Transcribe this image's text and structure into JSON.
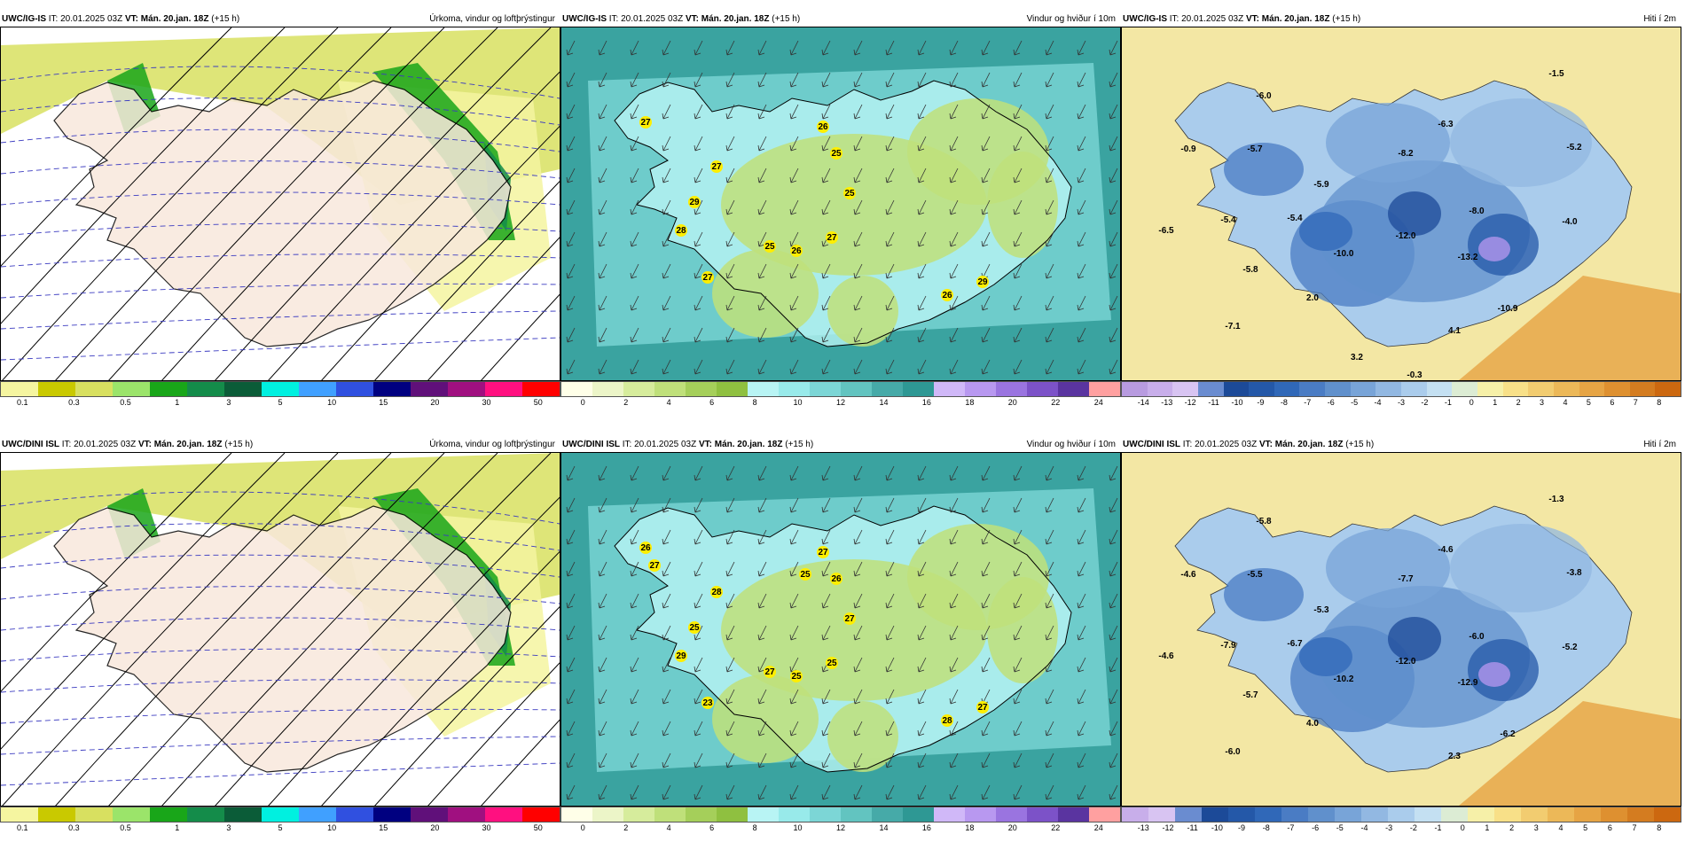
{
  "panels": [
    {
      "model": "UWC/IG-IS",
      "it": "IT: 20.01.2025 03Z",
      "vt_label": "VT:",
      "vt": "Mán. 20.jan. 18Z",
      "lead": "(+15 h)",
      "title": "Úrkoma, vindur og loftþrýstingur",
      "type": "precip",
      "cbar_colors": [
        "#f5f5a0",
        "#c9c900",
        "#d8e060",
        "#9be46a",
        "#19a619",
        "#148c4a",
        "#0b5c38",
        "#00f0e0",
        "#40a0ff",
        "#3050e0",
        "#000080",
        "#60107a",
        "#a01080",
        "#ff1080",
        "#ff0000"
      ],
      "ticks": [
        "0.1",
        "0.3",
        "0.5",
        "1",
        "3",
        "5",
        "10",
        "15",
        "20",
        "30",
        "50"
      ],
      "labels": []
    },
    {
      "model": "UWC/IG-IS",
      "it": "IT: 20.01.2025 03Z",
      "vt_label": "VT:",
      "vt": "Mán. 20.jan. 18Z",
      "lead": "(+15 h)",
      "title": "Vindur og hviður í 10m",
      "type": "wind",
      "cbar_colors": [
        "#ffffe8",
        "#ecf5c8",
        "#d6ec9c",
        "#bfe07a",
        "#a5cf5a",
        "#8fc040",
        "#b8f4f4",
        "#98eaea",
        "#7cd6d6",
        "#62c4c0",
        "#46aaa8",
        "#2e9894",
        "#d0b8f8",
        "#b898f0",
        "#9a74e0",
        "#7c52c8",
        "#5a34a0",
        "#ffa0a0"
      ],
      "ticks": [
        "0",
        "2",
        "4",
        "6",
        "8",
        "10",
        "12",
        "14",
        "16",
        "18",
        "20",
        "22",
        "24"
      ],
      "labels": [
        "27",
        "26",
        "25",
        "27",
        "25",
        "29",
        "28",
        "25",
        "26",
        "27",
        "27",
        "26",
        "29"
      ]
    },
    {
      "model": "UWC/IG-IS",
      "it": "IT: 20.01.2025 03Z",
      "vt_label": "VT:",
      "vt": "Mán. 20.jan. 18Z",
      "lead": "(+15 h)",
      "title": "Hiti í 2m",
      "type": "temp",
      "cbar_colors": [
        "#b89be0",
        "#c8aeea",
        "#d8c4f2",
        "#6a8cd0",
        "#1c4a98",
        "#2458a8",
        "#3068b8",
        "#4a7cc4",
        "#6090cc",
        "#78a4d8",
        "#92b8e2",
        "#aaccec",
        "#c4e0f2",
        "#dcecd4",
        "#f6f0a8",
        "#f8e088",
        "#f2cc70",
        "#ecb858",
        "#e6a444",
        "#de9030",
        "#d47c20",
        "#cc6810"
      ],
      "ticks": [
        "-14",
        "-13",
        "-12",
        "-11",
        "-10",
        "-9",
        "-8",
        "-7",
        "-6",
        "-5",
        "-4",
        "-3",
        "-2",
        "-1",
        "0",
        "1",
        "2",
        "3",
        "4",
        "5",
        "6",
        "7",
        "8"
      ],
      "labels": [
        "-1.5",
        "-6.0",
        "-6.3",
        "-0.9",
        "-5.7",
        "-8.2",
        "-5.2",
        "-5.9",
        "-8.0",
        "-5.4",
        "-4.0",
        "-6.5",
        "-5.4",
        "-10.0",
        "-12.0",
        "-13.2",
        "-5.8",
        "2.0",
        "-10.9",
        "-7.1",
        "4.1",
        "3.2",
        "-0.3"
      ]
    },
    {
      "model": "UWC/DINI ISL",
      "it": "IT: 20.01.2025 03Z",
      "vt_label": "VT:",
      "vt": "Mán. 20.jan. 18Z",
      "lead": "(+15 h)",
      "title": "Úrkoma, vindur og loftþrýstingur",
      "type": "precip",
      "cbar_colors": [
        "#f5f5a0",
        "#c9c900",
        "#d8e060",
        "#9be46a",
        "#19a619",
        "#148c4a",
        "#0b5c38",
        "#00f0e0",
        "#40a0ff",
        "#3050e0",
        "#000080",
        "#60107a",
        "#a01080",
        "#ff1080",
        "#ff0000"
      ],
      "ticks": [
        "0.1",
        "0.3",
        "0.5",
        "1",
        "3",
        "5",
        "10",
        "15",
        "20",
        "30",
        "50"
      ],
      "labels": []
    },
    {
      "model": "UWC/DINI ISL",
      "it": "IT: 20.01.2025 03Z",
      "vt_label": "VT:",
      "vt": "Mán. 20.jan. 18Z",
      "lead": "(+15 h)",
      "title": "Vindur og hviður í 10m",
      "type": "wind",
      "cbar_colors": [
        "#ffffe8",
        "#ecf5c8",
        "#d6ec9c",
        "#bfe07a",
        "#a5cf5a",
        "#8fc040",
        "#b8f4f4",
        "#98eaea",
        "#7cd6d6",
        "#62c4c0",
        "#46aaa8",
        "#2e9894",
        "#d0b8f8",
        "#b898f0",
        "#9a74e0",
        "#7c52c8",
        "#5a34a0",
        "#ffa0a0"
      ],
      "ticks": [
        "0",
        "2",
        "4",
        "6",
        "8",
        "10",
        "12",
        "14",
        "16",
        "18",
        "20",
        "22",
        "24"
      ],
      "labels": [
        "26",
        "27",
        "26",
        "28",
        "27",
        "25",
        "29",
        "27",
        "25",
        "25",
        "23",
        "28",
        "27",
        "27",
        "25"
      ]
    },
    {
      "model": "UWC/DINI ISL",
      "it": "IT: 20.01.2025 03Z",
      "vt_label": "VT:",
      "vt": "Mán. 20.jan. 18Z",
      "lead": "(+15 h)",
      "title": "Hiti í 2m",
      "type": "temp",
      "cbar_colors": [
        "#c8aeea",
        "#d8c4f2",
        "#6a8cd0",
        "#1c4a98",
        "#2458a8",
        "#3068b8",
        "#4a7cc4",
        "#6090cc",
        "#78a4d8",
        "#92b8e2",
        "#aaccec",
        "#c4e0f2",
        "#dcecd4",
        "#f6f0a8",
        "#f8e088",
        "#f2cc70",
        "#ecb858",
        "#e6a444",
        "#de9030",
        "#d47c20",
        "#cc6810"
      ],
      "ticks": [
        "-13",
        "-12",
        "-11",
        "-10",
        "-9",
        "-8",
        "-7",
        "-6",
        "-5",
        "-4",
        "-3",
        "-2",
        "-1",
        "0",
        "1",
        "2",
        "3",
        "4",
        "5",
        "6",
        "7",
        "8"
      ],
      "labels": [
        "-1.3",
        "-5.8",
        "-4.6",
        "-4.6",
        "-5.5",
        "-7.7",
        "-3.8",
        "-5.3",
        "-6.0",
        "-7.9",
        "-5.2",
        "-4.6",
        "-6.7",
        "-10.2",
        "-12.0",
        "-12.9",
        "-5.7",
        "4.0",
        "-6.2",
        "-6.0",
        "2.3"
      ]
    }
  ]
}
